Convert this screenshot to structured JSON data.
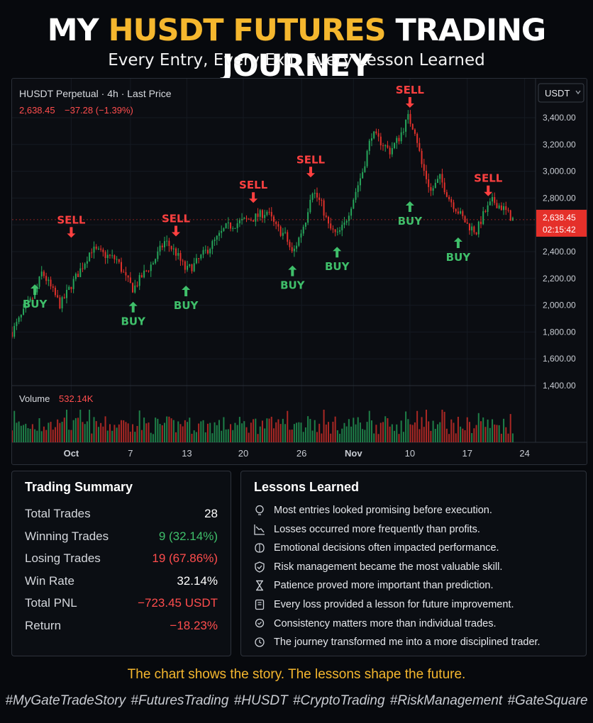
{
  "header": {
    "title_pre": "MY",
    "title_highlight": "HUSDT FUTURES",
    "title_post": "TRADING JOURNEY",
    "subtitle": "Every Entry, Every Exit, Every Lesson Learned"
  },
  "colors": {
    "accent": "#f5b72e",
    "up": "#26a65b",
    "down": "#e0312b",
    "buy": "#3fbf6a",
    "sell": "#ff4040"
  },
  "chart_data": {
    "type": "candlestick",
    "legend": "HUSDT Perpetual · 4h · Last Price",
    "last_price": "2,638.45",
    "change": "−37.28 (−1.39%)",
    "currency_button": "USDT",
    "price_tag": "2,638.45",
    "countdown": "02:15:42",
    "y_ticks": [
      "3,400.00",
      "3,200.00",
      "3,000.00",
      "2,800.00",
      "2,600.00",
      "2,400.00",
      "2,200.00",
      "2,000.00",
      "1,800.00",
      "1,600.00",
      "1,400.00"
    ],
    "y_tick_values": [
      3400,
      3200,
      3000,
      2800,
      2600,
      2400,
      2200,
      2000,
      1800,
      1600,
      1400
    ],
    "ylim": [
      1400,
      3500
    ],
    "x_ticks": [
      "Oct",
      "7",
      "13",
      "20",
      "26",
      "Nov",
      "10",
      "17",
      "24"
    ],
    "x_tick_days": [
      0,
      6.5,
      12.7,
      18.9,
      25.3,
      31,
      37.2,
      43.5,
      49.8
    ],
    "xlim": [
      -6.5,
      51
    ],
    "price_path": [
      [
        -6.5,
        1800
      ],
      [
        -5.2,
        1950
      ],
      [
        -4,
        2080
      ],
      [
        -3.2,
        2250
      ],
      [
        -2,
        2100
      ],
      [
        -1.2,
        2000
      ],
      [
        0,
        2150
      ],
      [
        1.3,
        2300
      ],
      [
        2.2,
        2420
      ],
      [
        3.5,
        2380
      ],
      [
        5,
        2340
      ],
      [
        6,
        2200
      ],
      [
        6.8,
        2120
      ],
      [
        7.8,
        2220
      ],
      [
        9,
        2320
      ],
      [
        10.3,
        2480
      ],
      [
        11.5,
        2390
      ],
      [
        12.6,
        2260
      ],
      [
        13.5,
        2300
      ],
      [
        14.5,
        2380
      ],
      [
        15.8,
        2480
      ],
      [
        17,
        2580
      ],
      [
        18.5,
        2620
      ],
      [
        20,
        2650
      ],
      [
        21.5,
        2700
      ],
      [
        22.5,
        2580
      ],
      [
        23.5,
        2520
      ],
      [
        24.3,
        2380
      ],
      [
        25,
        2500
      ],
      [
        25.8,
        2650
      ],
      [
        26.4,
        2870
      ],
      [
        27.5,
        2750
      ],
      [
        28.3,
        2580
      ],
      [
        29.2,
        2520
      ],
      [
        30,
        2600
      ],
      [
        31,
        2800
      ],
      [
        32,
        3000
      ],
      [
        33,
        3280
      ],
      [
        34,
        3220
      ],
      [
        35,
        3150
      ],
      [
        36,
        3250
      ],
      [
        37,
        3400
      ],
      [
        37.8,
        3300
      ],
      [
        38.5,
        3050
      ],
      [
        39.5,
        2850
      ],
      [
        40.5,
        2950
      ],
      [
        41.5,
        2800
      ],
      [
        42.5,
        2700
      ],
      [
        43.5,
        2600
      ],
      [
        44.5,
        2550
      ],
      [
        45.3,
        2680
      ],
      [
        46.3,
        2780
      ],
      [
        47.5,
        2720
      ],
      [
        48.5,
        2640
      ]
    ],
    "signals": [
      {
        "type": "BUY",
        "x": -4,
        "y": 2230
      },
      {
        "type": "SELL",
        "x": 0,
        "y": 2430
      },
      {
        "type": "BUY",
        "x": 6.8,
        "y": 2100
      },
      {
        "type": "SELL",
        "x": 11.5,
        "y": 2440
      },
      {
        "type": "BUY",
        "x": 12.6,
        "y": 2220
      },
      {
        "type": "SELL",
        "x": 20,
        "y": 2690
      },
      {
        "type": "BUY",
        "x": 24.3,
        "y": 2370
      },
      {
        "type": "SELL",
        "x": 26.3,
        "y": 2880
      },
      {
        "type": "BUY",
        "x": 29.2,
        "y": 2510
      },
      {
        "type": "SELL",
        "x": 37.2,
        "y": 3400
      },
      {
        "type": "BUY",
        "x": 37.2,
        "y": 2850
      },
      {
        "type": "BUY",
        "x": 42.5,
        "y": 2580
      },
      {
        "type": "SELL",
        "x": 45.8,
        "y": 2740
      }
    ],
    "volume_label": "Volume",
    "volume_value": "532.14K"
  },
  "summary": {
    "title": "Trading Summary",
    "rows": [
      {
        "label": "Total Trades",
        "value": "28"
      },
      {
        "label": "Winning Trades",
        "value": "9 (32.14%)"
      },
      {
        "label": "Losing Trades",
        "value": "19 (67.86%)"
      },
      {
        "label": "Win Rate",
        "value": "32.14%"
      },
      {
        "label": "Total PNL",
        "value": "−723.45 USDT"
      },
      {
        "label": "Return",
        "value": "−18.23%"
      }
    ]
  },
  "lessons": {
    "title": "Lessons Learned",
    "items": [
      {
        "icon": "bulb-icon",
        "text": "Most entries looked promising before execution."
      },
      {
        "icon": "decline-chart-icon",
        "text": "Losses occurred more frequently than profits."
      },
      {
        "icon": "brain-icon",
        "text": "Emotional decisions often impacted performance."
      },
      {
        "icon": "shield-icon",
        "text": "Risk management became the most valuable skill."
      },
      {
        "icon": "hourglass-icon",
        "text": "Patience proved more important than prediction."
      },
      {
        "icon": "book-icon",
        "text": "Every loss provided a lesson for future improvement."
      },
      {
        "icon": "badge-icon",
        "text": "Consistency matters more than individual trades."
      },
      {
        "icon": "refresh-icon",
        "text": "The journey transformed me into a more disciplined trader."
      }
    ]
  },
  "footer": {
    "quote": "The chart shows the story. The lessons shape the future.",
    "hashtags": "#MyGateTradeStory #FuturesTrading #HUSDT #CryptoTrading #RiskManagement #GateSquare"
  }
}
